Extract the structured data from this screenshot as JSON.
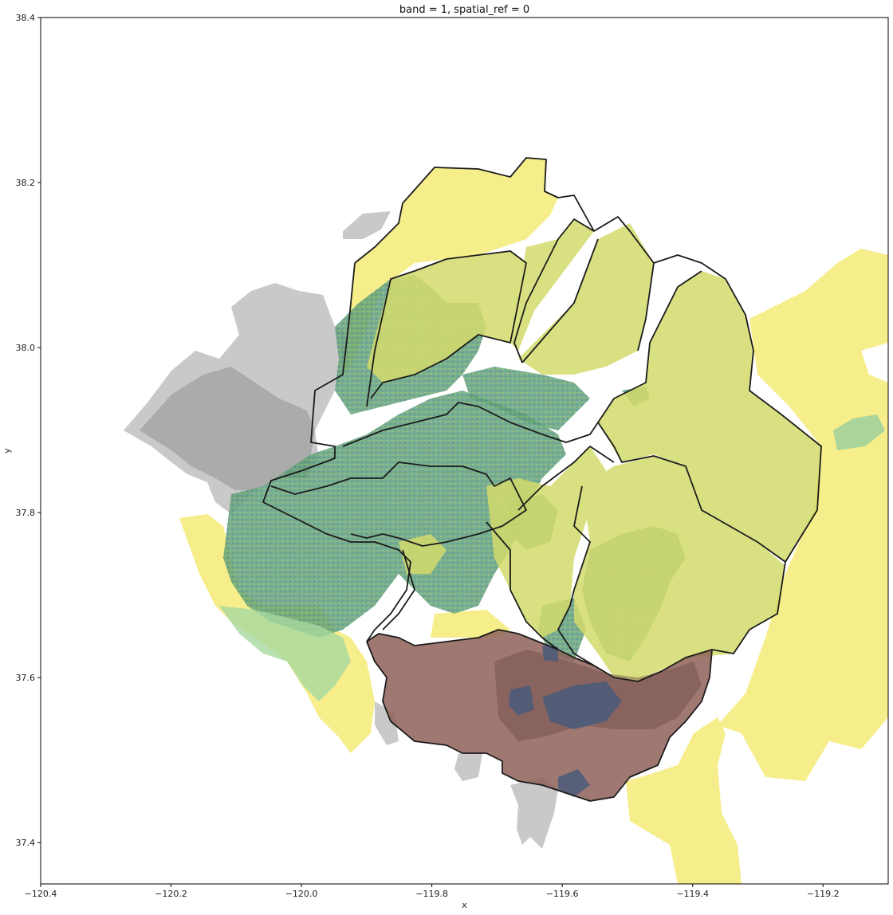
{
  "chart_data": {
    "type": "map",
    "title": "band = 1, spatial_ref = 0",
    "xlabel": "x",
    "ylabel": "y",
    "xlim": [
      -120.4,
      -119.1
    ],
    "ylim": [
      37.35,
      38.4
    ],
    "xticks": [
      -120.4,
      -120.2,
      -120.0,
      -119.8,
      -119.6,
      -119.4,
      -119.2
    ],
    "xtick_labels": [
      "−120.4",
      "−120.2",
      "−120.0",
      "−119.8",
      "−119.6",
      "−119.4",
      "−119.2"
    ],
    "yticks": [
      37.4,
      37.6,
      37.8,
      38.0,
      38.2,
      38.4
    ],
    "ytick_labels": [
      "37.4",
      "37.6",
      "37.8",
      "38.0",
      "38.2",
      "38.4"
    ],
    "grid": false,
    "layers": [
      {
        "name": "gray-regions",
        "color": "#c8c8c8"
      },
      {
        "name": "yellow-regions",
        "color": "#f5ed80"
      },
      {
        "name": "green-raster",
        "color": "#5a9e7a"
      },
      {
        "name": "olive-watersheds",
        "color": "#d4dc6e"
      },
      {
        "name": "brown-watershed",
        "color": "#8b5a50"
      },
      {
        "name": "outlines",
        "color": "#1a1a1a"
      }
    ]
  }
}
